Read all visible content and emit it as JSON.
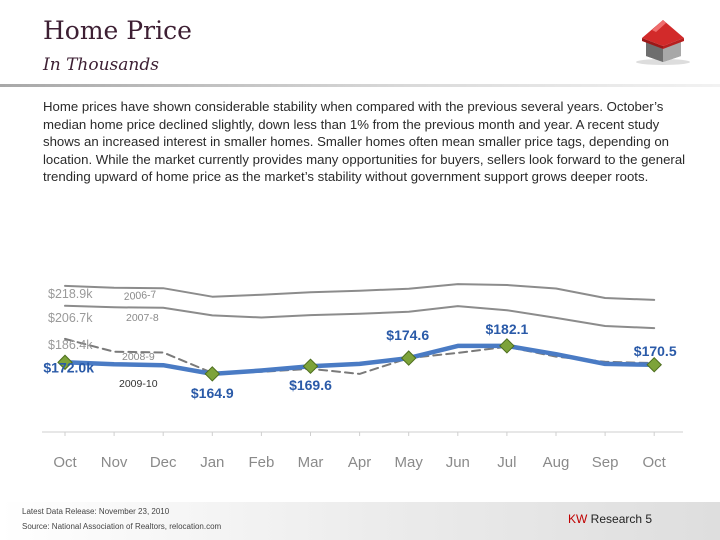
{
  "header": {
    "title": "Home Price",
    "subtitle": "In Thousands"
  },
  "body_text": "Home prices have shown considerable stability when compared with the previous several years. October’s median home price declined slightly, down less than 1% from the previous month and year. A recent study shows an increased interest in smaller homes. Smaller homes often mean smaller price tags, depending on location. While the market currently provides many opportunities for buyers, sellers look forward to the general trending upward of home price as the market’s stability without government support grows deeper roots.",
  "footer": {
    "release": "Latest Data Release: November 23, 2010",
    "source": "Source: National Association of Realtors, relocation.com",
    "brand_kw": "KW",
    "brand_rest": " Research 5"
  },
  "colors": {
    "title": "#3d1f33",
    "highlight_line": "#4a7bc4",
    "gray_line": "#8c8c8c",
    "dashed_line": "#7a7a7a",
    "value_label": "#2a5aa8",
    "marker": "#7da33a",
    "brand_accent": "#c00000"
  },
  "chart_data": {
    "type": "line",
    "categories": [
      "Oct",
      "Nov",
      "Dec",
      "Jan",
      "Feb",
      "Mar",
      "Apr",
      "May",
      "Jun",
      "Jul",
      "Aug",
      "Sep",
      "Oct"
    ],
    "ylim": [
      155,
      225
    ],
    "grid": false,
    "series": [
      {
        "name": "2006-7",
        "start_label": "$218.9k",
        "style": "solid-gray",
        "values": [
          218.9,
          217.8,
          217.5,
          212.3,
          213.5,
          215.0,
          216.0,
          217.2,
          220.0,
          219.5,
          217.3,
          211.5,
          210.3
        ]
      },
      {
        "name": "2007-8",
        "start_label": "$206.7k",
        "style": "solid-gray",
        "values": [
          206.7,
          205.8,
          205.5,
          200.8,
          199.5,
          201.0,
          201.8,
          203.0,
          206.5,
          204.0,
          199.3,
          194.3,
          193.0
        ]
      },
      {
        "name": "2008-9",
        "start_label": "$186.4k",
        "style": "dashed-gray",
        "values": [
          186.4,
          178.5,
          178.0,
          165.5,
          166.2,
          168.0,
          164.9,
          174.6,
          177.8,
          181.5,
          175.5,
          172.3,
          171.5
        ]
      },
      {
        "name": "2009-10",
        "start_label": "$172.0k",
        "style": "highlight",
        "values": [
          172.0,
          170.8,
          170.2,
          164.9,
          167.0,
          169.6,
          171.0,
          174.6,
          182.1,
          182.1,
          177.0,
          171.0,
          170.5
        ],
        "markers": [
          {
            "index": 0,
            "label": "$172.0k",
            "label_pos": "left"
          },
          {
            "index": 3,
            "label": "$164.9",
            "label_pos": "below"
          },
          {
            "index": 5,
            "label": "$169.6",
            "label_pos": "below"
          },
          {
            "index": 7,
            "label": "$174.6",
            "label_pos": "above"
          },
          {
            "index": 9,
            "label": "$182.1",
            "label_pos": "above"
          },
          {
            "index": 12,
            "label": "$170.5",
            "label_pos": "above"
          }
        ]
      }
    ]
  }
}
